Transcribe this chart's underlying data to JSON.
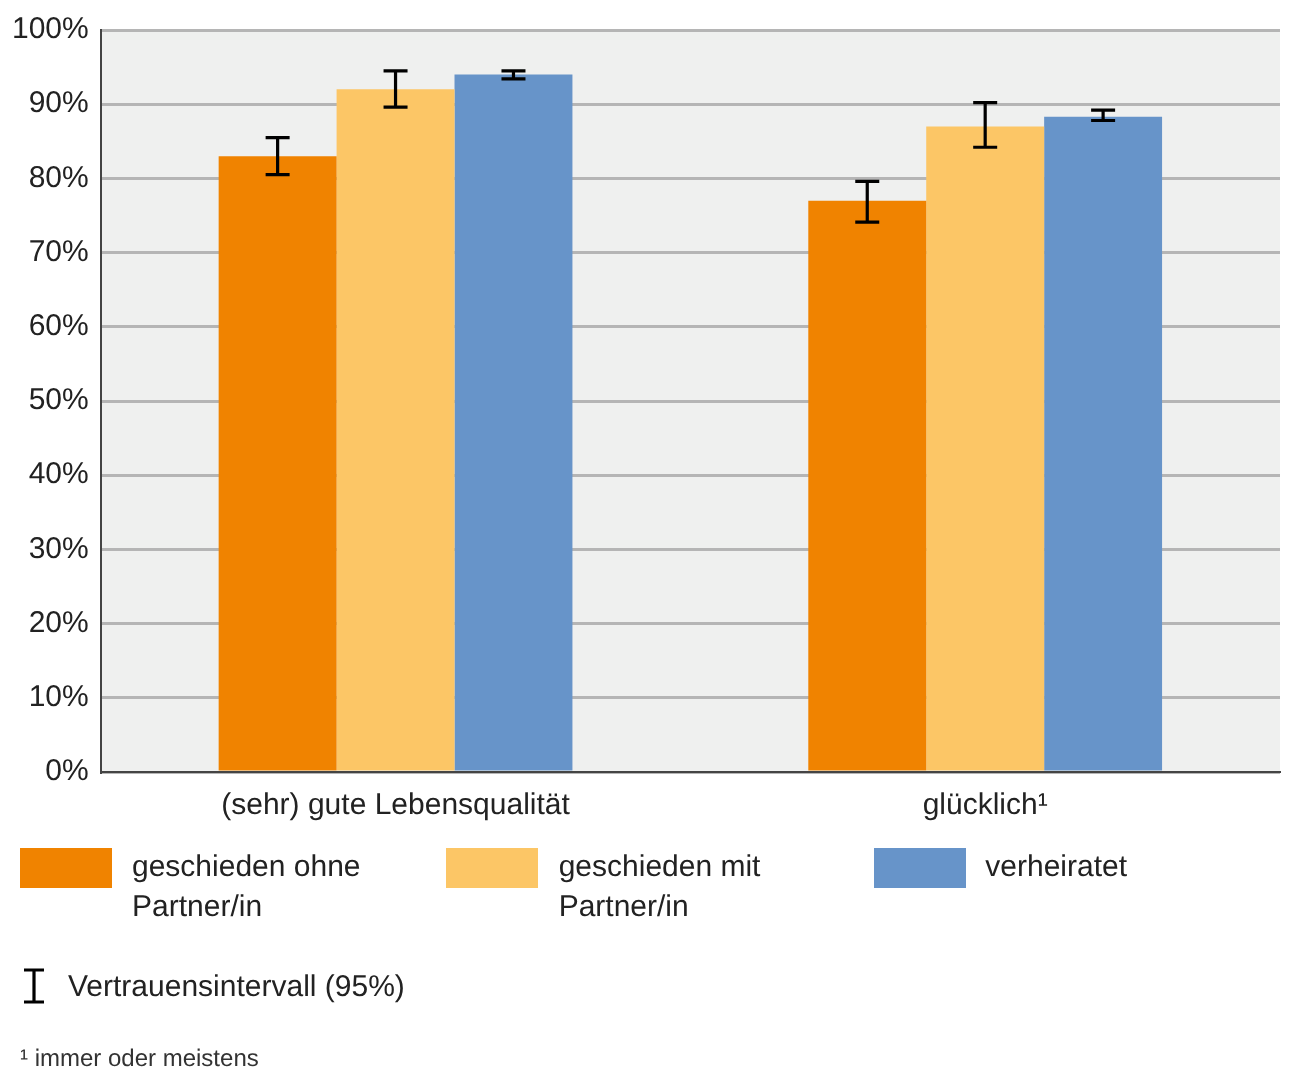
{
  "chart_data": {
    "type": "bar",
    "categories": [
      "(sehr) gute Lebensqualität",
      "glücklich¹"
    ],
    "series": [
      {
        "name": "geschieden ohne Partner/in",
        "color": "#f08300",
        "values": [
          83,
          77
        ],
        "errors": [
          [
            80.5,
            85.5
          ],
          [
            74.1,
            79.6
          ]
        ]
      },
      {
        "name": "geschieden mit Partner/in",
        "color": "#fcc666",
        "values": [
          92,
          87
        ],
        "errors": [
          [
            89.6,
            94.5
          ],
          [
            84.2,
            90.2
          ]
        ]
      },
      {
        "name": "verheiratet",
        "color": "#6794c9",
        "values": [
          94,
          88.3
        ],
        "errors": [
          [
            93.4,
            94.5
          ],
          [
            87.8,
            89.2
          ]
        ]
      }
    ],
    "ylim": [
      0,
      100
    ],
    "yticks": [
      {
        "value": 0,
        "label": "0%"
      },
      {
        "value": 10,
        "label": "10%"
      },
      {
        "value": 20,
        "label": "20%"
      },
      {
        "value": 30,
        "label": "30%"
      },
      {
        "value": 40,
        "label": "40%"
      },
      {
        "value": 50,
        "label": "50%"
      },
      {
        "value": 60,
        "label": "60%"
      },
      {
        "value": 70,
        "label": "70%"
      },
      {
        "value": 80,
        "label": "80%"
      },
      {
        "value": 90,
        "label": "90%"
      },
      {
        "value": 100,
        "label": "100%"
      }
    ],
    "grid": "y",
    "legend": "bottom",
    "annotations": [
      "Vertrauensintervall (95%)",
      "¹ immer oder meistens"
    ]
  }
}
